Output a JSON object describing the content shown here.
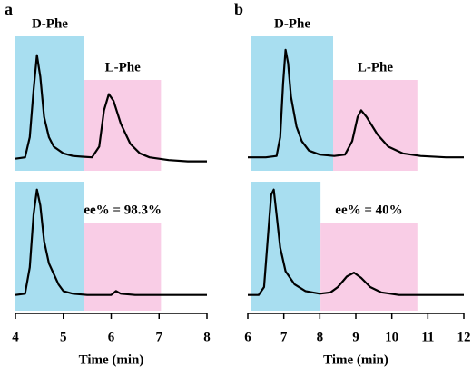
{
  "chart_data": [
    {
      "type": "line",
      "panel_label": "a",
      "xlabel": "Time (min)",
      "xlim": [
        4,
        8
      ],
      "xticks": [
        4,
        5,
        6,
        7,
        8
      ],
      "traces": [
        {
          "ylim": [
            0,
            100
          ],
          "color": "#000000",
          "x": [
            4.0,
            4.2,
            4.3,
            4.38,
            4.45,
            4.52,
            4.6,
            4.7,
            4.8,
            5.0,
            5.2,
            5.4,
            5.6,
            5.75,
            5.85,
            5.95,
            6.05,
            6.2,
            6.4,
            6.6,
            6.8,
            7.2,
            7.6,
            8.0
          ],
          "values": [
            9,
            10,
            25,
            60,
            86,
            70,
            40,
            25,
            18,
            13,
            11,
            10.5,
            10,
            18,
            45,
            57,
            52,
            35,
            20,
            13,
            10,
            8,
            7,
            7
          ],
          "regions": [
            {
              "x": [
                4.0,
                5.44
              ],
              "color": "#a8def0",
              "label": "D-Phe"
            },
            {
              "x": [
                5.44,
                7.04
              ],
              "color": "#f9cde6",
              "label": "L-Phe"
            }
          ]
        },
        {
          "ylim": [
            0,
            100
          ],
          "color": "#000000",
          "x": [
            4.0,
            4.2,
            4.3,
            4.38,
            4.45,
            4.52,
            4.6,
            4.7,
            4.8,
            4.9,
            5.0,
            5.2,
            5.5,
            6.0,
            6.1,
            6.2,
            6.5,
            7.0,
            8.0
          ],
          "values": [
            14,
            15,
            35,
            75,
            94,
            82,
            55,
            38,
            30,
            22,
            17,
            15,
            14,
            14,
            17,
            15,
            14,
            14,
            14
          ],
          "regions": [
            {
              "x": [
                4.0,
                5.44
              ],
              "color": "#a8def0"
            },
            {
              "x": [
                5.44,
                7.04
              ],
              "color": "#f9cde6",
              "label": "ee% = 98.3%"
            }
          ]
        }
      ]
    },
    {
      "type": "line",
      "panel_label": "b",
      "xlabel": "Time (min)",
      "xlim": [
        6,
        12
      ],
      "xticks": [
        6,
        7,
        8,
        9,
        10,
        11,
        12
      ],
      "traces": [
        {
          "ylim": [
            0,
            100
          ],
          "color": "#000000",
          "x": [
            6.0,
            6.5,
            6.8,
            6.9,
            6.98,
            7.05,
            7.12,
            7.2,
            7.35,
            7.5,
            7.7,
            8.0,
            8.4,
            8.7,
            8.9,
            9.05,
            9.15,
            9.3,
            9.6,
            9.9,
            10.3,
            10.8,
            11.5,
            12.0
          ],
          "values": [
            10,
            10,
            11,
            25,
            65,
            90,
            80,
            55,
            33,
            22,
            15,
            12,
            11,
            12,
            22,
            40,
            45,
            40,
            27,
            18,
            13,
            11,
            10,
            10
          ],
          "regions": [
            {
              "x": [
                6.1,
                8.37
              ],
              "color": "#a8def0",
              "label": "D-Phe"
            },
            {
              "x": [
                8.37,
                10.71
              ],
              "color": "#f9cde6",
              "label": "L-Phe"
            }
          ]
        },
        {
          "ylim": [
            0,
            100
          ],
          "color": "#000000",
          "x": [
            6.0,
            6.3,
            6.45,
            6.55,
            6.65,
            6.72,
            6.8,
            6.9,
            7.05,
            7.3,
            7.6,
            8.0,
            8.3,
            8.5,
            8.75,
            8.95,
            9.15,
            9.4,
            9.7,
            10.2,
            11.0,
            12.0
          ],
          "values": [
            14,
            14,
            20,
            55,
            90,
            94,
            75,
            50,
            32,
            22,
            17,
            15,
            16,
            20,
            28,
            31,
            27,
            20,
            16,
            14,
            14,
            14
          ],
          "regions": [
            {
              "x": [
                6.1,
                8.02
              ],
              "color": "#a8def0"
            },
            {
              "x": [
                8.02,
                10.71
              ],
              "color": "#f9cde6",
              "label": "ee% = 40%"
            }
          ]
        }
      ]
    }
  ]
}
